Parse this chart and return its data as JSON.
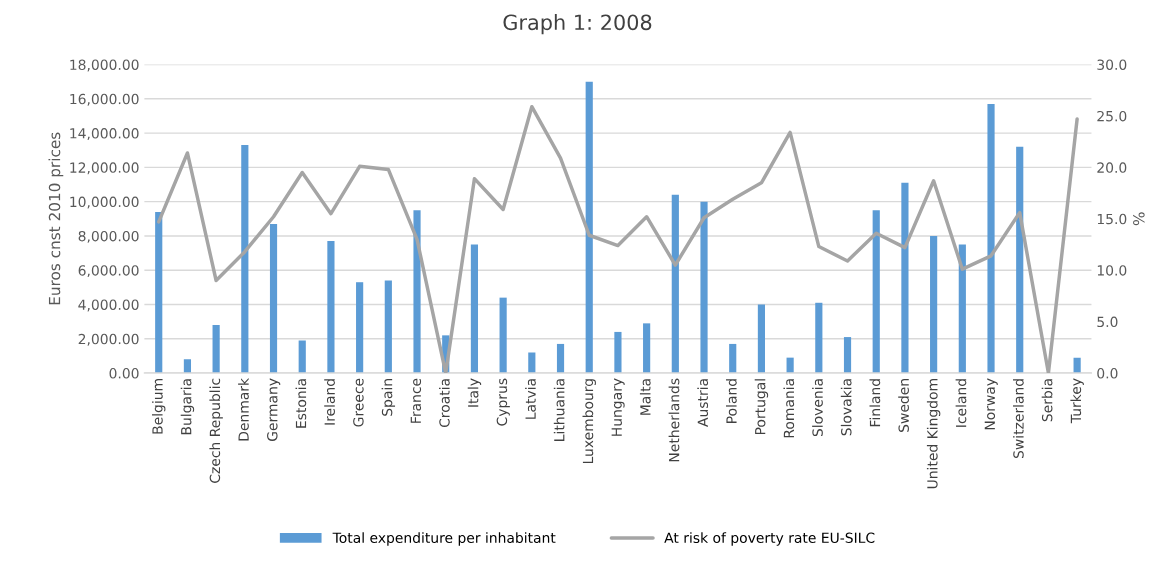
{
  "chart_data": {
    "type": "bar",
    "title": "Graph 1: 2008",
    "ylabel": "Euros cnst 2010 prices",
    "y2label": "%",
    "categories": [
      "Belgium",
      "Bulgaria",
      "Czech Republic",
      "Denmark",
      "Germany",
      "Estonia",
      "Ireland",
      "Greece",
      "Spain",
      "France",
      "Croatia",
      "Italy",
      "Cyprus",
      "Latvia",
      "Lithuania",
      "Luxembourg",
      "Hungary",
      "Malta",
      "Netherlands",
      "Austria",
      "Poland",
      "Portugal",
      "Romania",
      "Slovenia",
      "Slovakia",
      "Finland",
      "Sweden",
      "United Kingdom",
      "Iceland",
      "Norway",
      "Switzerland",
      "Serbia",
      "Turkey"
    ],
    "series": [
      {
        "name": "Total expenditure per inhabitant",
        "color": "#5b9bd5",
        "values": [
          9400,
          800,
          2800,
          13300,
          8700,
          1900,
          7700,
          5300,
          5400,
          9500,
          2200,
          7500,
          4400,
          1200,
          1700,
          17000,
          2400,
          2900,
          10400,
          10000,
          1700,
          4000,
          900,
          4100,
          2100,
          9500,
          11100,
          8000,
          7500,
          15700,
          13200,
          null,
          900
        ]
      },
      {
        "name": "At risk of poverty rate EU-SILC",
        "type": "line",
        "axis": "y2",
        "color": "#a5a5a5",
        "values": [
          14.7,
          21.4,
          9.0,
          11.8,
          15.2,
          19.5,
          15.5,
          20.1,
          19.8,
          13.0,
          0,
          18.9,
          15.9,
          25.9,
          20.9,
          13.4,
          12.4,
          15.2,
          10.5,
          15.1,
          16.9,
          18.5,
          23.4,
          12.3,
          10.9,
          13.6,
          12.2,
          18.7,
          10.1,
          11.4,
          15.6,
          0,
          24.7
        ]
      }
    ],
    "ylim": [
      0,
      18000
    ],
    "yticks": [
      {
        "value": 0,
        "label": "0.00"
      },
      {
        "value": 2000,
        "label": "2,000.00"
      },
      {
        "value": 4000,
        "label": "4,000.00"
      },
      {
        "value": 6000,
        "label": "6,000.00"
      },
      {
        "value": 8000,
        "label": "8,000.00"
      },
      {
        "value": 10000,
        "label": "10,000.00"
      },
      {
        "value": 12000,
        "label": "12,000.00"
      },
      {
        "value": 14000,
        "label": "14,000.00"
      },
      {
        "value": 16000,
        "label": "16,000.00"
      },
      {
        "value": 18000,
        "label": "18,000.00"
      }
    ],
    "y2lim": [
      0,
      30
    ],
    "y2ticks": [
      {
        "value": 0,
        "label": "0.0"
      },
      {
        "value": 5,
        "label": "5.0"
      },
      {
        "value": 10,
        "label": "10.0"
      },
      {
        "value": 15,
        "label": "15.0"
      },
      {
        "value": 20,
        "label": "20.0"
      },
      {
        "value": 25,
        "label": "25.0"
      },
      {
        "value": 30,
        "label": "30.0"
      }
    ],
    "grid": "y",
    "legend": "bottom"
  }
}
